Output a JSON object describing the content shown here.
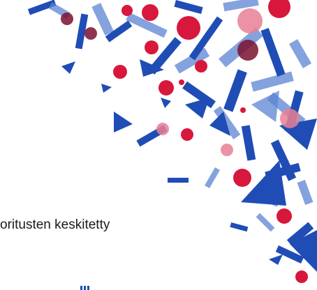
{
  "text": "oritusten keskitetty"
}
